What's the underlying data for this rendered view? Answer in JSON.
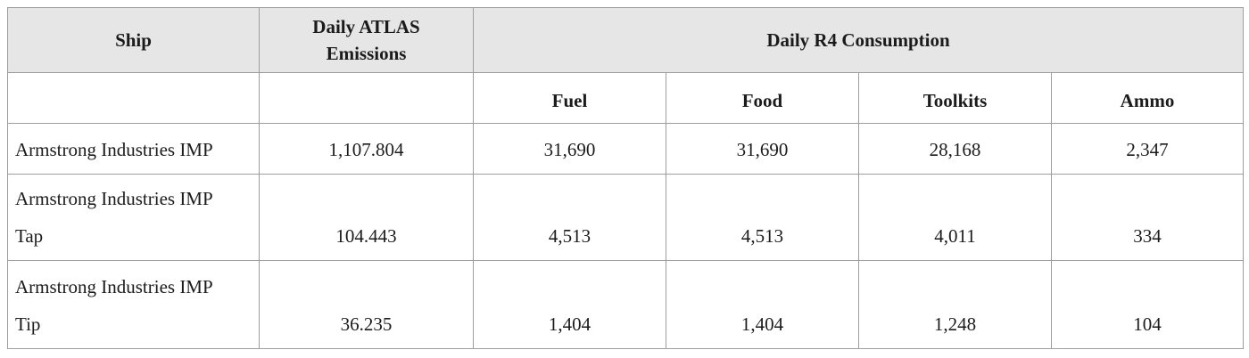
{
  "chart_data": {
    "type": "table",
    "title": "",
    "column_groups": [
      {
        "label": "Daily R4 Consumption",
        "columns": [
          "Fuel",
          "Food",
          "Toolkits",
          "Ammo"
        ]
      }
    ],
    "columns": [
      "Ship",
      "Daily ATLAS Emissions",
      "Fuel",
      "Food",
      "Toolkits",
      "Ammo"
    ],
    "rows": [
      [
        "Armstrong Industries IMP",
        1107.804,
        31690,
        31690,
        28168,
        2347
      ],
      [
        "Armstrong Industries IMP Tap",
        104.443,
        4513,
        4513,
        4011,
        334
      ],
      [
        "Armstrong Industries IMP Tip",
        36.235,
        1404,
        1404,
        1248,
        104
      ]
    ]
  },
  "table": {
    "header": {
      "ship": "Ship",
      "atlas": "Daily ATLAS Emissions",
      "r4_group": "Daily R4 Consumption",
      "fuel": "Fuel",
      "food": "Food",
      "toolkits": "Toolkits",
      "ammo": "Ammo"
    },
    "rows": [
      {
        "ship": "Armstrong Industries IMP",
        "atlas": "1,107.804",
        "fuel": "31,690",
        "food": "31,690",
        "toolkits": "28,168",
        "ammo": "2,347"
      },
      {
        "ship": "Armstrong Industries IMP Tap",
        "atlas": "104.443",
        "fuel": "4,513",
        "food": "4,513",
        "toolkits": "4,011",
        "ammo": "334"
      },
      {
        "ship": "Armstrong Industries IMP Tip",
        "atlas": "36.235",
        "fuel": "1,404",
        "food": "1,404",
        "toolkits": "1,248",
        "ammo": "104"
      }
    ]
  },
  "colors": {
    "header_bg": "#e6e6e6",
    "border": "#9e9e9e",
    "text": "#1b1b1b",
    "background": "#ffffff"
  }
}
